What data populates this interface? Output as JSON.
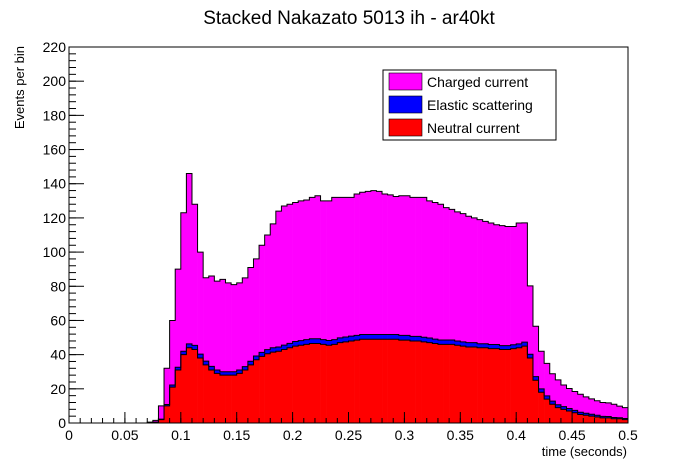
{
  "chart_data": {
    "type": "area",
    "stacked": true,
    "title": "Stacked Nakazato 5013 ih - ar40kt",
    "xlabel": "time (seconds)",
    "ylabel": "Events per bin",
    "xlim": [
      0,
      0.5
    ],
    "ylim": [
      0,
      220
    ],
    "x_ticks": [
      0,
      0.05,
      0.1,
      0.15,
      0.2,
      0.25,
      0.3,
      0.35,
      0.4,
      0.45,
      0.5
    ],
    "x_tick_labels": [
      "0",
      "0.05",
      "0.1",
      "0.15",
      "0.2",
      "0.25",
      "0.3",
      "0.35",
      "0.4",
      "0.45",
      "0.5"
    ],
    "y_ticks": [
      0,
      20,
      40,
      60,
      80,
      100,
      120,
      140,
      160,
      180,
      200,
      220
    ],
    "y_tick_labels": [
      "0",
      "20",
      "40",
      "60",
      "80",
      "100",
      "120",
      "140",
      "160",
      "180",
      "200",
      "220"
    ],
    "bin_width": 0.005,
    "x": [
      0.0,
      0.005,
      0.01,
      0.015,
      0.02,
      0.025,
      0.03,
      0.035,
      0.04,
      0.045,
      0.05,
      0.055,
      0.06,
      0.065,
      0.07,
      0.075,
      0.08,
      0.085,
      0.09,
      0.095,
      0.1,
      0.105,
      0.11,
      0.115,
      0.12,
      0.125,
      0.13,
      0.135,
      0.14,
      0.145,
      0.15,
      0.155,
      0.16,
      0.165,
      0.17,
      0.175,
      0.18,
      0.185,
      0.19,
      0.195,
      0.2,
      0.205,
      0.21,
      0.215,
      0.22,
      0.225,
      0.23,
      0.235,
      0.24,
      0.245,
      0.25,
      0.255,
      0.26,
      0.265,
      0.27,
      0.275,
      0.28,
      0.285,
      0.29,
      0.295,
      0.3,
      0.305,
      0.31,
      0.315,
      0.32,
      0.325,
      0.33,
      0.335,
      0.34,
      0.345,
      0.35,
      0.355,
      0.36,
      0.365,
      0.37,
      0.375,
      0.38,
      0.385,
      0.39,
      0.395,
      0.4,
      0.405,
      0.41,
      0.415,
      0.42,
      0.425,
      0.43,
      0.435,
      0.44,
      0.445,
      0.45,
      0.455,
      0.46,
      0.465,
      0.47,
      0.475,
      0.48,
      0.485,
      0.49,
      0.495
    ],
    "series": [
      {
        "name": "Neutral current",
        "color": "#ff0000",
        "values": [
          0,
          0,
          0,
          0,
          0,
          0,
          0,
          0,
          0,
          0,
          0,
          0,
          0,
          0,
          0,
          0.5,
          2,
          10,
          21,
          31,
          40,
          44,
          43,
          38,
          34,
          31,
          29,
          28,
          28,
          28,
          29,
          31,
          34,
          37,
          39,
          40.5,
          41.5,
          42,
          43,
          44,
          45,
          45.5,
          46,
          46.5,
          46.5,
          46,
          45.5,
          46,
          47,
          47.5,
          48,
          48.5,
          49,
          49,
          49,
          49,
          49,
          49,
          49,
          48.5,
          48.5,
          48,
          48,
          47.5,
          47,
          46.5,
          46,
          46,
          46,
          45.5,
          45,
          44.5,
          44.5,
          44,
          44,
          43.5,
          43.5,
          43,
          43,
          43.5,
          44,
          45,
          38,
          25,
          18,
          14,
          11,
          9,
          8,
          7,
          6,
          5,
          4.5,
          4,
          3.5,
          3,
          3,
          2.5,
          2.5,
          2
        ]
      },
      {
        "name": "Elastic scattering",
        "color": "#0000ff",
        "values": [
          0,
          0,
          0,
          0,
          0,
          0,
          0,
          0,
          0,
          0,
          0,
          0,
          0,
          0,
          0,
          0,
          0.3,
          0.8,
          1.2,
          1.6,
          2,
          2.3,
          2.4,
          2.3,
          2.2,
          2.1,
          2,
          2,
          2,
          2,
          2,
          2,
          2.1,
          2.2,
          2.3,
          2.4,
          2.5,
          2.5,
          2.6,
          2.6,
          2.7,
          2.7,
          2.8,
          2.8,
          2.8,
          2.8,
          2.8,
          2.8,
          2.8,
          2.8,
          2.8,
          2.8,
          2.8,
          2.8,
          2.8,
          2.8,
          2.8,
          2.8,
          2.8,
          2.8,
          2.8,
          2.7,
          2.7,
          2.7,
          2.7,
          2.6,
          2.6,
          2.6,
          2.6,
          2.5,
          2.5,
          2.5,
          2.5,
          2.4,
          2.4,
          2.4,
          2.4,
          2.3,
          2.3,
          2.3,
          2.3,
          2.3,
          2.2,
          2.1,
          2,
          1.9,
          1.8,
          1.7,
          1.6,
          1.5,
          1.4,
          1.3,
          1.2,
          1.1,
          1,
          0.9,
          0.8,
          0.7,
          0.6,
          0.6
        ]
      },
      {
        "name": "Charged current",
        "color": "#ff00ff",
        "values": [
          0,
          0,
          0,
          0,
          0,
          0,
          0,
          0,
          0,
          0,
          0,
          0,
          0,
          0,
          0.5,
          1,
          7.7,
          21.2,
          37.8,
          57.4,
          81,
          99.7,
          82.6,
          59.7,
          48.8,
          52.9,
          52,
          54,
          52,
          51,
          51,
          51.9,
          54.9,
          56.8,
          62.7,
          67.1,
          72.5,
          79.5,
          81.4,
          81.4,
          81.3,
          81.8,
          81.7,
          82.7,
          83.7,
          81.2,
          81.7,
          83.2,
          82.2,
          81.7,
          81.2,
          82.7,
          83.2,
          83.7,
          84.2,
          83.7,
          82.2,
          81.7,
          80.7,
          81.7,
          81.7,
          81.3,
          81.3,
          81.8,
          80.3,
          79.9,
          79.4,
          77.4,
          76.4,
          75.5,
          75,
          74,
          73,
          72.6,
          71.6,
          71.1,
          70.1,
          70.2,
          69.7,
          69.2,
          70.7,
          69.8,
          40,
          29.5,
          22,
          19,
          16,
          14.5,
          12.6,
          11.7,
          11,
          10.5,
          9.6,
          9,
          8.5,
          8.1,
          8,
          7.8,
          6.8,
          6.4
        ]
      }
    ],
    "legend": {
      "placement": "top-right",
      "entries": [
        {
          "label": "Charged current",
          "color": "#ff00ff"
        },
        {
          "label": "Elastic scattering",
          "color": "#0000ff"
        },
        {
          "label": "Neutral current",
          "color": "#ff0000"
        }
      ]
    },
    "grid": false
  }
}
